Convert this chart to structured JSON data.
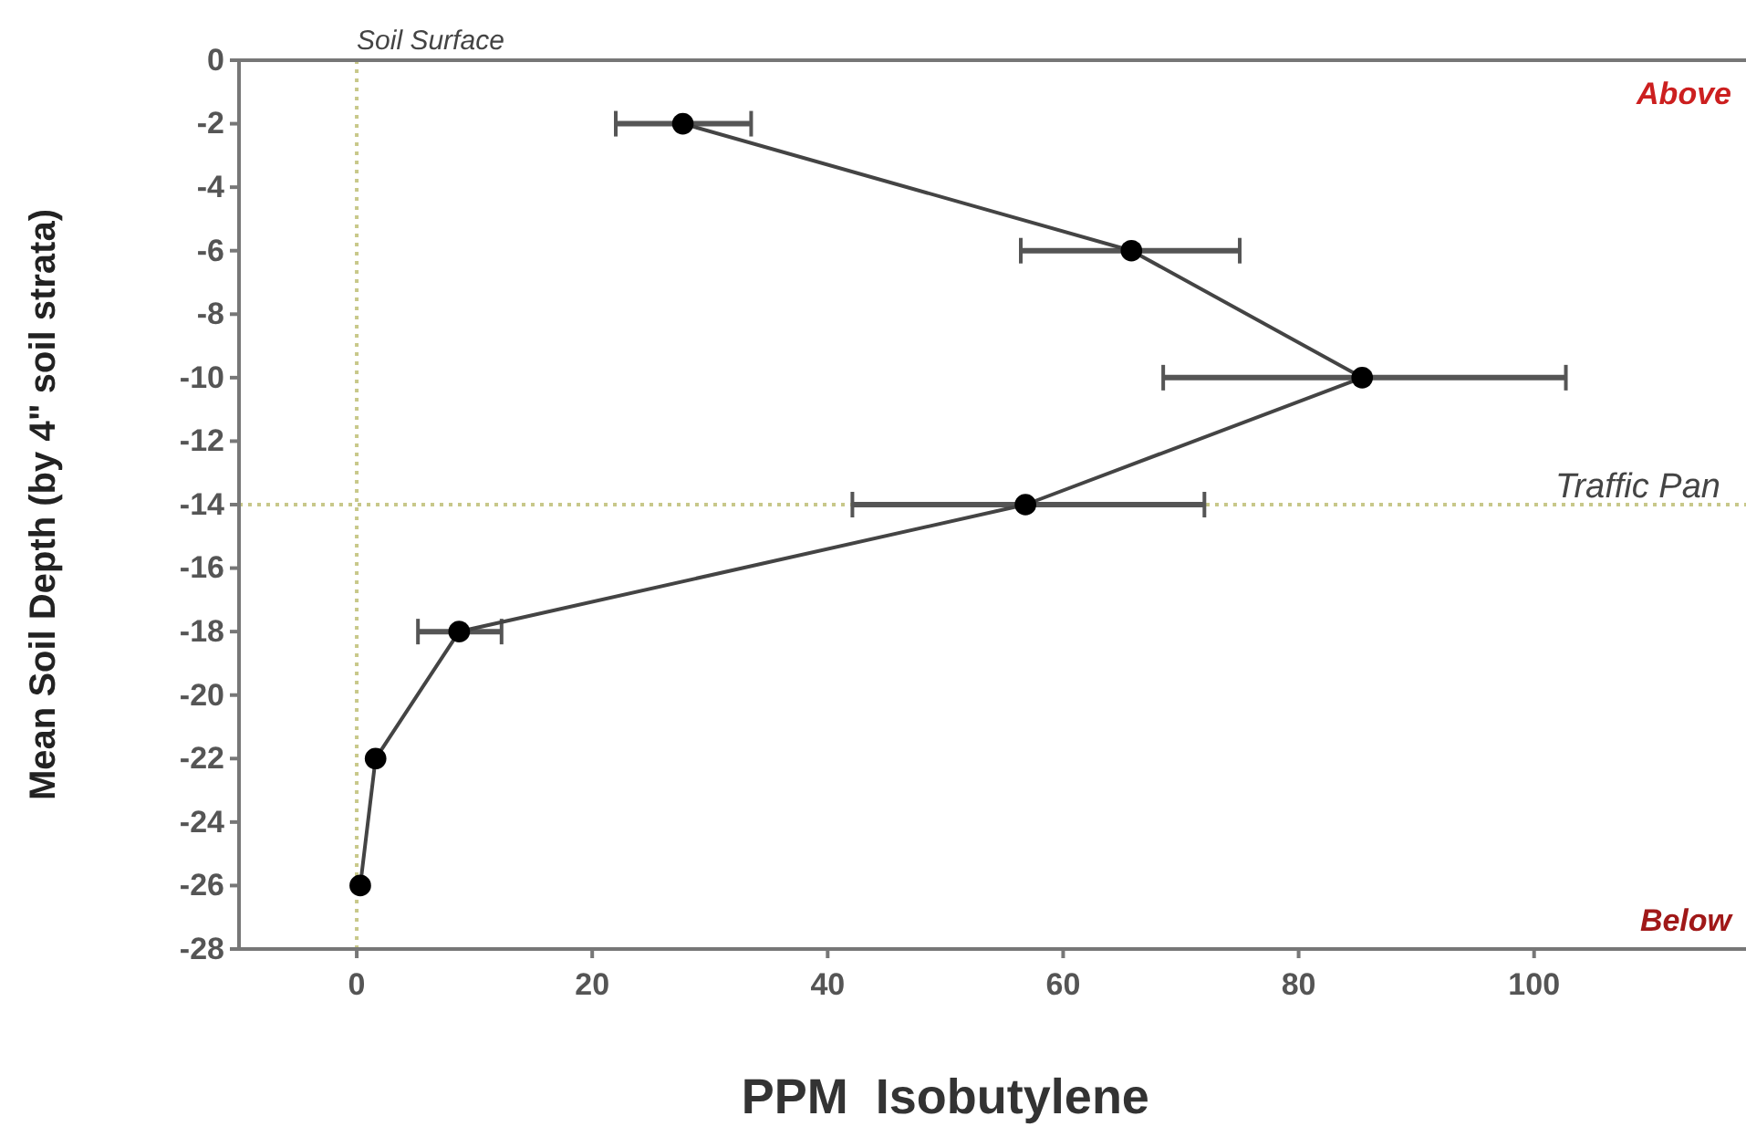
{
  "chart_data": {
    "type": "line",
    "xlabel": "PPM  Isobutylene",
    "ylabel": "Mean Soil Depth (by 4\" soil strata)",
    "series": [
      {
        "color": "#000000",
        "x": [
          27.7,
          65.8,
          85.4,
          56.8,
          8.7,
          1.6,
          0.3
        ],
        "values": [
          -2,
          -6,
          -10,
          -14,
          -18,
          -22,
          -26
        ],
        "xerrors": [
          [
            22.0,
            33.5
          ],
          [
            56.4,
            75.0
          ],
          [
            68.5,
            102.7
          ],
          [
            42.1,
            72.0
          ],
          [
            5.2,
            12.3
          ],
          null,
          null
        ]
      }
    ],
    "xlim": [
      -10,
      118
    ],
    "xticks": [
      0,
      20,
      40,
      60,
      80,
      100
    ],
    "ylim": [
      -28,
      0
    ],
    "yticks": [
      0,
      -2,
      -4,
      -6,
      -8,
      -10,
      -12,
      -14,
      -16,
      -18,
      -20,
      -22,
      -24,
      -26,
      -28
    ],
    "ref_lines": [
      {
        "axis": "x",
        "value": 0,
        "label": "Soil Surface",
        "color": "#c8c88a",
        "line_style": "dotted"
      },
      {
        "axis": "y",
        "value": -14,
        "label": "Traffic Pan",
        "color": "#c8c88a",
        "line_style": "dotted"
      }
    ],
    "annotations": [
      "Above",
      "Below"
    ],
    "marker": "circle",
    "line_style": "solid",
    "grid": false
  }
}
